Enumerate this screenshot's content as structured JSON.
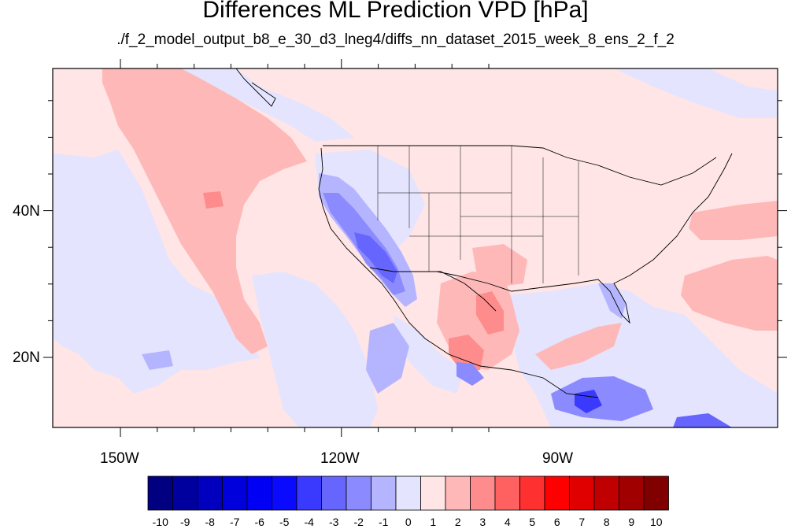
{
  "title": "Differences ML Prediction VPD [hPa]",
  "subtitle": "./f_2_model_output_b8_e_30_d3_lneg4/diffs_nn_dataset_2015_week_8_ens_2_f_2",
  "x_ticks": [
    "150W",
    "120W",
    "90W"
  ],
  "y_ticks": [
    "40N",
    "20N"
  ],
  "colorbar": {
    "labels": [
      "-10",
      "-9",
      "-8",
      "-7",
      "-6",
      "-5",
      "-4",
      "-3",
      "-2",
      "-1",
      "0",
      "1",
      "2",
      "3",
      "4",
      "5",
      "6",
      "7",
      "8",
      "9",
      "10"
    ],
    "colors": [
      "#000080",
      "#00009f",
      "#0000be",
      "#0000dc",
      "#0000f4",
      "#0a0aff",
      "#3a3aff",
      "#6666ff",
      "#8b8bff",
      "#b5b5ff",
      "#e4e4ff",
      "#ffe5e5",
      "#ffb8b8",
      "#ff8c8c",
      "#ff6060",
      "#ff3030",
      "#ff0000",
      "#e00000",
      "#c00000",
      "#a00000",
      "#800000"
    ]
  },
  "map": {
    "extent": {
      "lon_min": -159.5,
      "lon_max": -60.5,
      "lat_min": 10.5,
      "lat_max": 59.5
    },
    "background_color": "#ffe5e5",
    "ocean_negative_color": "#e4e4ff"
  }
}
